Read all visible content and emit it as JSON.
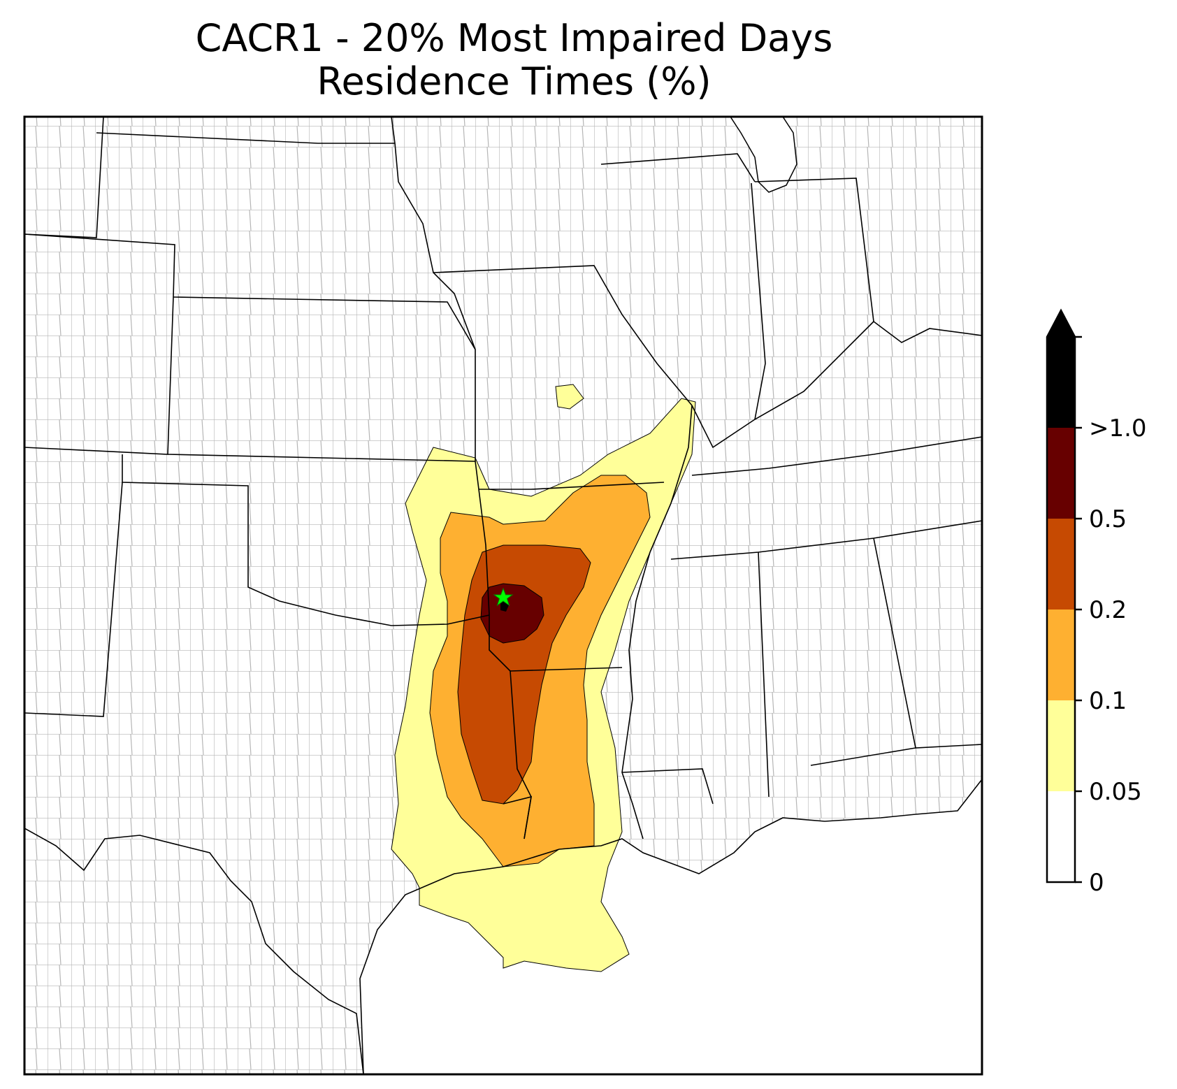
{
  "title": {
    "line1": "CACR1 - 20% Most Impaired Days",
    "line2": "Residence Times (%)"
  },
  "colorbar": {
    "extend": "max",
    "ticks": [
      "0",
      "0.05",
      "0.1",
      "0.2",
      "0.5",
      ">1.0"
    ],
    "bins": [
      {
        "lower": "0",
        "upper": "0.05",
        "color": "#ffffff"
      },
      {
        "lower": "0.05",
        "upper": "0.1",
        "color": "#ffff99"
      },
      {
        "lower": "0.1",
        "upper": "0.2",
        "color": "#feb031"
      },
      {
        "lower": "0.2",
        "upper": "0.5",
        "color": "#c64a02"
      },
      {
        "lower": "0.5",
        "upper": "1.0",
        "color": "#670000"
      },
      {
        "lower": ">1.0",
        "upper": null,
        "color": "#000000"
      }
    ]
  },
  "map": {
    "site_marker": {
      "symbol": "star",
      "color": "#00ff00"
    },
    "state_border_color": "#000000",
    "county_border_color": "#a0a0a0"
  }
}
